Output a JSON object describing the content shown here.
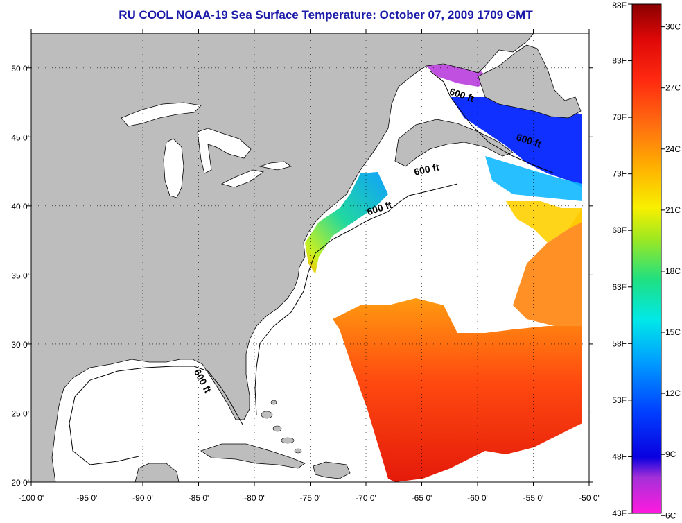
{
  "title": "RU COOL  NOAA-19  Sea Surface Temperature:  October 07, 2009 1709 GMT",
  "x_ticks": [
    {
      "value": -100,
      "label": "-100 0'"
    },
    {
      "value": -95,
      "label": "-95 0'"
    },
    {
      "value": -90,
      "label": "-90 0'"
    },
    {
      "value": -85,
      "label": "-85 0'"
    },
    {
      "value": -80,
      "label": "-80 0'"
    },
    {
      "value": -75,
      "label": "-75 0'"
    },
    {
      "value": -70,
      "label": "-70 0'"
    },
    {
      "value": -65,
      "label": "-65 0'"
    },
    {
      "value": -60,
      "label": "-60 0'"
    },
    {
      "value": -55,
      "label": "-55 0'"
    },
    {
      "value": -50,
      "label": "-50 0'"
    }
  ],
  "y_ticks": [
    {
      "value": 20,
      "label": "20 0'"
    },
    {
      "value": 25,
      "label": "25 0'"
    },
    {
      "value": 30,
      "label": "30 0'"
    },
    {
      "value": 35,
      "label": "35 0'"
    },
    {
      "value": 40,
      "label": "40 0'"
    },
    {
      "value": 45,
      "label": "45 0'"
    },
    {
      "value": 50,
      "label": "50 0'"
    }
  ],
  "map_extent": {
    "lon_min": -100,
    "lon_max": -50,
    "lat_min": 20,
    "lat_max": 52.5
  },
  "contour_labels": [
    {
      "text": "600 ft",
      "lon": -61.5,
      "lat": 47.8,
      "angle": 18
    },
    {
      "text": "600 ft",
      "lon": -55.5,
      "lat": 44.5,
      "angle": 18
    },
    {
      "text": "600 ft",
      "lon": -64.5,
      "lat": 42.4,
      "angle": -12
    },
    {
      "text": "600 ft",
      "lon": -68.7,
      "lat": 39.6,
      "angle": -18
    },
    {
      "text": "600 ft",
      "lon": -84.9,
      "lat": 27.2,
      "angle": 62
    }
  ],
  "colorbar": {
    "min_f": 43,
    "max_f": 88,
    "f_labels": [
      "88F",
      "83F",
      "78F",
      "73F",
      "68F",
      "63F",
      "58F",
      "53F",
      "48F",
      "43F"
    ],
    "c_labels": [
      {
        "label": "30C",
        "c": 30
      },
      {
        "label": "27C",
        "c": 27
      },
      {
        "label": "24C",
        "c": 24
      },
      {
        "label": "21C",
        "c": 21
      },
      {
        "label": "18C",
        "c": 18
      },
      {
        "label": "15C",
        "c": 15
      },
      {
        "label": "12C",
        "c": 12
      },
      {
        "label": "9C",
        "c": 9
      },
      {
        "label": "6C",
        "c": 6
      }
    ]
  },
  "colors": {
    "land": "#bdbdbd",
    "ocean_no_data": "#ffffff",
    "title": "#1a1aa8"
  }
}
